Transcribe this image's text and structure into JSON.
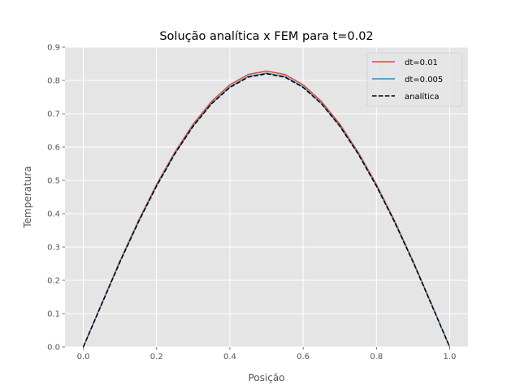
{
  "chart_data": {
    "type": "line",
    "title": "Solução analítica x FEM para t=0.02",
    "xlabel": "Posição",
    "ylabel": "Temperatura",
    "xlim": [
      -0.05,
      1.05
    ],
    "ylim": [
      0.0,
      0.9
    ],
    "xticks": [
      "0.0",
      "0.2",
      "0.4",
      "0.6",
      "0.8",
      "1.0"
    ],
    "yticks": [
      "0.0",
      "0.1",
      "0.2",
      "0.3",
      "0.4",
      "0.5",
      "0.6",
      "0.7",
      "0.8",
      "0.9"
    ],
    "grid": true,
    "legend_position": "top-right",
    "x": [
      0.0,
      0.05,
      0.1,
      0.15,
      0.2,
      0.25,
      0.3,
      0.35,
      0.4,
      0.45,
      0.5,
      0.55,
      0.6,
      0.65,
      0.7,
      0.75,
      0.8,
      0.85,
      0.9,
      0.95,
      1.0
    ],
    "series": [
      {
        "name": "dt=0.01",
        "color": "#E24A33",
        "dash": "solid",
        "values": [
          0.0,
          0.13,
          0.258,
          0.378,
          0.488,
          0.585,
          0.669,
          0.737,
          0.787,
          0.818,
          0.828,
          0.818,
          0.787,
          0.737,
          0.669,
          0.585,
          0.488,
          0.378,
          0.258,
          0.13,
          0.0
        ]
      },
      {
        "name": "dt=0.005",
        "color": "#348ABD",
        "dash": "solid",
        "values": [
          0.0,
          0.129,
          0.256,
          0.375,
          0.484,
          0.581,
          0.664,
          0.731,
          0.781,
          0.812,
          0.822,
          0.812,
          0.781,
          0.731,
          0.664,
          0.581,
          0.484,
          0.375,
          0.256,
          0.129,
          0.0
        ]
      },
      {
        "name": "analítica",
        "color": "#000000",
        "dash": "dashed",
        "values": [
          0.0,
          0.128,
          0.255,
          0.374,
          0.483,
          0.58,
          0.663,
          0.73,
          0.779,
          0.81,
          0.82,
          0.81,
          0.779,
          0.73,
          0.663,
          0.58,
          0.483,
          0.374,
          0.255,
          0.128,
          0.0
        ]
      }
    ]
  }
}
